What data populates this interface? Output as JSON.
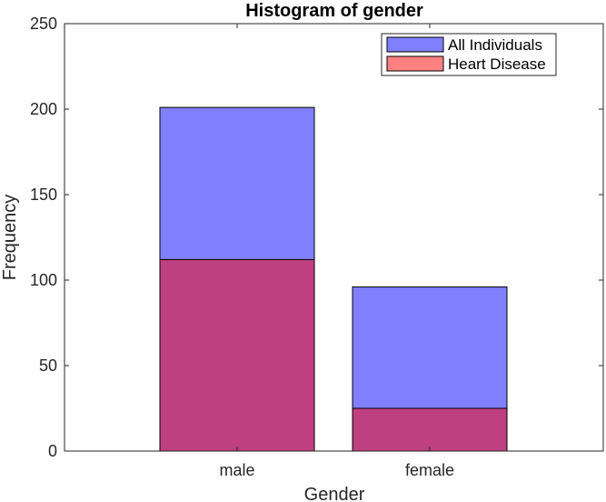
{
  "chart_data": {
    "type": "bar",
    "title": "Histogram of gender",
    "xlabel": "Gender",
    "ylabel": "Frequency",
    "categories": [
      "male",
      "female"
    ],
    "series": [
      {
        "name": "All Individuals",
        "values": [
          201,
          96
        ],
        "color": "#8080ff"
      },
      {
        "name": "Heart Disease",
        "values": [
          112,
          25
        ],
        "color": "#ff8080"
      }
    ],
    "overlap_color": "#bf4080",
    "ylim": [
      0,
      250
    ],
    "yticks": [
      0,
      50,
      100,
      150,
      200,
      250
    ],
    "grid": false,
    "legend_position": "top-right",
    "bar_mode": "overlay"
  }
}
